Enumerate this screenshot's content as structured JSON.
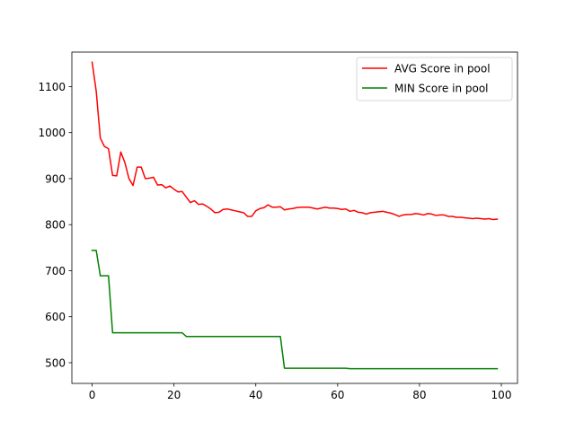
{
  "chart_data": {
    "type": "line",
    "title": "",
    "xlabel": "",
    "ylabel": "",
    "xlim": [
      -4.95,
      103.95
    ],
    "ylim": [
      455,
      1175
    ],
    "xticks": [
      0,
      20,
      40,
      60,
      80,
      100
    ],
    "yticks": [
      500,
      600,
      700,
      800,
      900,
      1000,
      1100
    ],
    "grid": false,
    "legend_position": "top-right",
    "series": [
      {
        "name": "AVG Score in pool",
        "color": "#ff0000",
        "x": [
          0,
          1,
          2,
          3,
          4,
          5,
          6,
          7,
          8,
          9,
          10,
          11,
          12,
          13,
          14,
          15,
          16,
          17,
          18,
          19,
          20,
          21,
          22,
          23,
          24,
          25,
          26,
          27,
          28,
          29,
          30,
          31,
          32,
          33,
          34,
          35,
          36,
          37,
          38,
          39,
          40,
          41,
          42,
          43,
          44,
          45,
          46,
          47,
          48,
          49,
          50,
          51,
          52,
          53,
          54,
          55,
          56,
          57,
          58,
          59,
          60,
          61,
          62,
          63,
          64,
          65,
          66,
          67,
          68,
          69,
          70,
          71,
          72,
          73,
          74,
          75,
          76,
          77,
          78,
          79,
          80,
          81,
          82,
          83,
          84,
          85,
          86,
          87,
          88,
          89,
          90,
          91,
          92,
          93,
          94,
          95,
          96,
          97,
          98,
          99
        ],
        "values": [
          1153,
          1090,
          988,
          970,
          965,
          907,
          906,
          958,
          935,
          900,
          885,
          925,
          925,
          900,
          901,
          903,
          886,
          887,
          880,
          884,
          877,
          871,
          872,
          860,
          848,
          852,
          844,
          845,
          840,
          834,
          826,
          827,
          833,
          834,
          832,
          830,
          828,
          826,
          818,
          818,
          830,
          835,
          837,
          843,
          838,
          838,
          839,
          832,
          834,
          835,
          837,
          838,
          838,
          838,
          836,
          834,
          836,
          838,
          836,
          836,
          835,
          833,
          834,
          829,
          831,
          827,
          826,
          823,
          826,
          827,
          828,
          829,
          827,
          825,
          822,
          818,
          821,
          822,
          822,
          824,
          823,
          821,
          824,
          823,
          820,
          821,
          821,
          818,
          818,
          816,
          816,
          815,
          814,
          813,
          814,
          813,
          812,
          813,
          811,
          812
        ]
      },
      {
        "name": "MIN Score in pool",
        "color": "#008000",
        "x": [
          0,
          1,
          2,
          3,
          4,
          5,
          6,
          7,
          8,
          9,
          10,
          11,
          12,
          13,
          14,
          15,
          16,
          17,
          18,
          19,
          20,
          21,
          22,
          23,
          24,
          25,
          26,
          27,
          28,
          29,
          30,
          31,
          32,
          33,
          34,
          35,
          36,
          37,
          38,
          39,
          40,
          41,
          42,
          43,
          44,
          45,
          46,
          47,
          48,
          49,
          50,
          51,
          52,
          53,
          54,
          55,
          56,
          57,
          58,
          59,
          60,
          61,
          62,
          63,
          64,
          65,
          66,
          67,
          68,
          69,
          70,
          71,
          72,
          73,
          74,
          75,
          76,
          77,
          78,
          79,
          80,
          81,
          82,
          83,
          84,
          85,
          86,
          87,
          88,
          89,
          90,
          91,
          92,
          93,
          94,
          95,
          96,
          97,
          98,
          99
        ],
        "values": [
          744,
          744,
          689,
          689,
          689,
          565,
          565,
          565,
          565,
          565,
          565,
          565,
          565,
          565,
          565,
          565,
          565,
          565,
          565,
          565,
          565,
          565,
          565,
          557,
          557,
          557,
          557,
          557,
          557,
          557,
          557,
          557,
          557,
          557,
          557,
          557,
          557,
          557,
          557,
          557,
          557,
          557,
          557,
          557,
          557,
          557,
          557,
          488,
          488,
          488,
          488,
          488,
          488,
          488,
          488,
          488,
          488,
          488,
          488,
          488,
          488,
          488,
          488,
          487,
          487,
          487,
          487,
          487,
          487,
          487,
          487,
          487,
          487,
          487,
          487,
          487,
          487,
          487,
          487,
          487,
          487,
          487,
          487,
          487,
          487,
          487,
          487,
          487,
          487,
          487,
          487,
          487,
          487,
          487,
          487,
          487,
          487,
          487,
          487,
          487
        ]
      }
    ]
  }
}
